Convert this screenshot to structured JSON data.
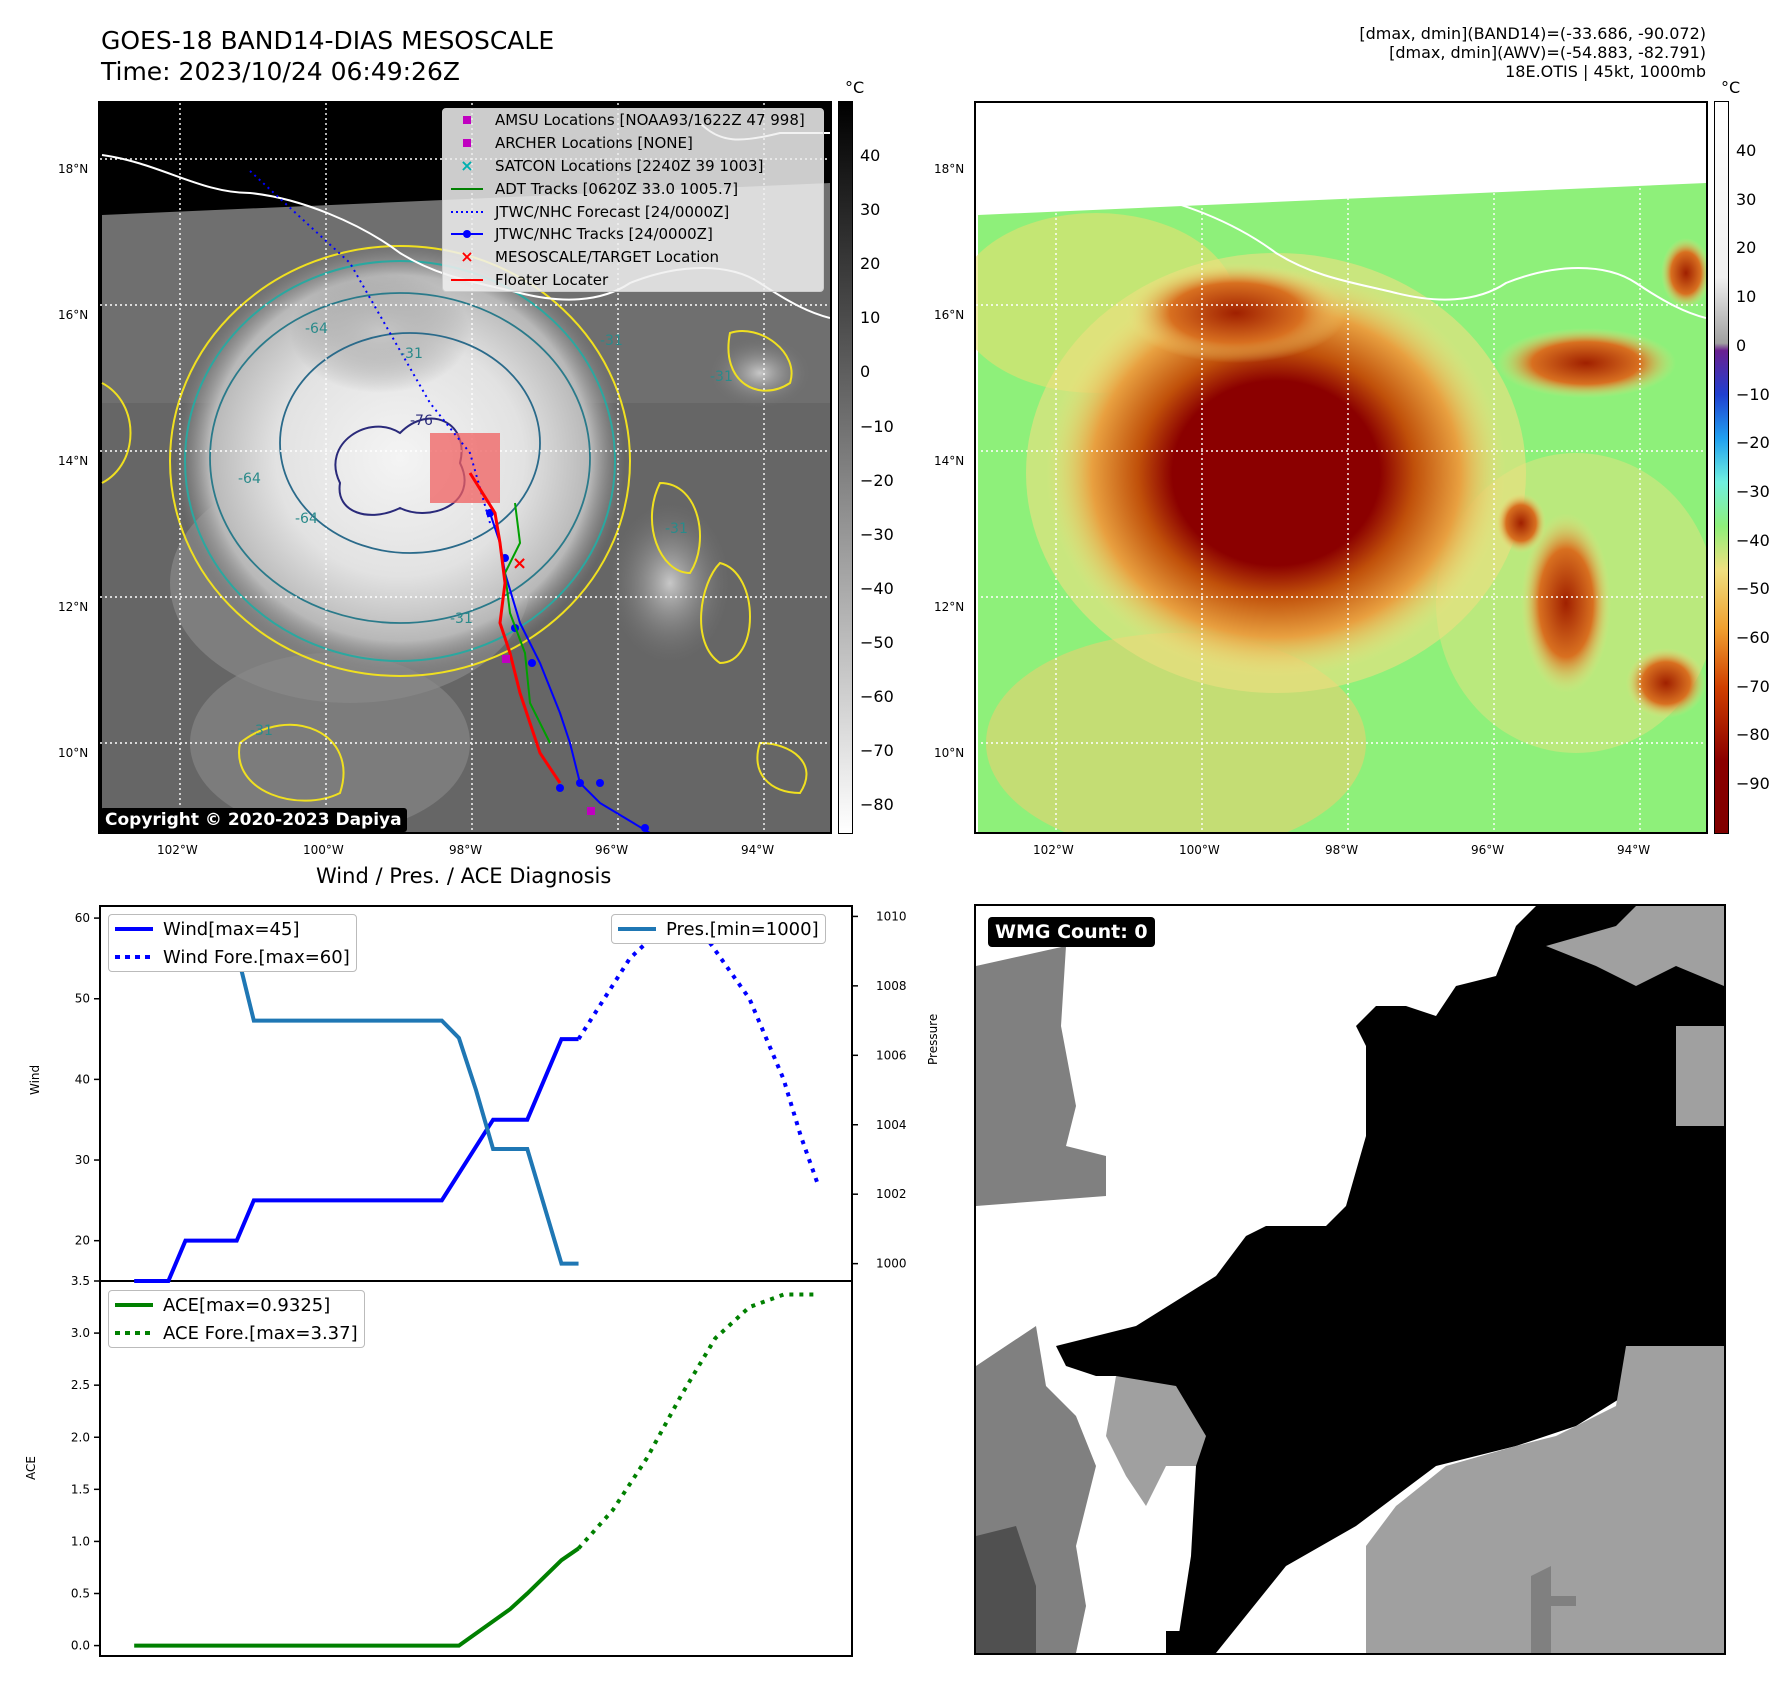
{
  "header": {
    "title_line1": "GOES-18 BAND14-DIAS MESOSCALE",
    "title_line2": "Time: 2023/10/24 06:49:26Z",
    "info_line1": "[dmax, dmin](BAND14)=(-33.686, -90.072)",
    "info_line2": "[dmax, dmin](AWV)=(-54.883, -82.791)",
    "info_line3": "18E.OTIS | 45kt, 1000mb"
  },
  "map": {
    "lat_ticks": [
      "18°N",
      "16°N",
      "14°N",
      "12°N",
      "10°N"
    ],
    "lon_ticks": [
      "102°W",
      "100°W",
      "98°W",
      "96°W",
      "94°W"
    ],
    "copyright": "Copyright © 2020-2023 Dapiya",
    "contour_labels": [
      "-64",
      "-64",
      "-76",
      "-31",
      "-31",
      "-31",
      "-31",
      "-64",
      "-31",
      "-31"
    ],
    "legend": [
      {
        "label": "AMSU Locations [NOAA93/1622Z 47 998]",
        "symbol": "square",
        "color": "#c000c0"
      },
      {
        "label": "ARCHER Locations [NONE]",
        "symbol": "square",
        "color": "#c000c0"
      },
      {
        "label": "SATCON Locations [2240Z 39 1003]",
        "symbol": "x",
        "color": "#00b0b0"
      },
      {
        "label": "ADT Tracks [0620Z 33.0 1005.7]",
        "symbol": "line",
        "color": "#008000"
      },
      {
        "label": "JTWC/NHC Forecast [24/0000Z]",
        "symbol": "dotted",
        "color": "#0000ff"
      },
      {
        "label": "JTWC/NHC Tracks [24/0000Z]",
        "symbol": "dotline",
        "color": "#0000ff"
      },
      {
        "label": "MESOSCALE/TARGET Location",
        "symbol": "x",
        "color": "#ff0000"
      },
      {
        "label": "Floater Locater",
        "symbol": "line",
        "color": "#ff0000"
      }
    ]
  },
  "colorbar1": {
    "unit": "°C",
    "ticks": [
      "40",
      "30",
      "20",
      "10",
      "0",
      "−10",
      "−20",
      "−30",
      "−40",
      "−50",
      "−60",
      "−70",
      "−80"
    ]
  },
  "colorbar2": {
    "unit": "°C",
    "ticks": [
      "40",
      "30",
      "20",
      "10",
      "0",
      "−10",
      "−20",
      "−30",
      "−40",
      "−50",
      "−60",
      "−70",
      "−80",
      "−90"
    ]
  },
  "diagnosis": {
    "title": "Wind / Pres. / ACE Diagnosis",
    "wind_ylabel": "Wind",
    "pres_ylabel": "Pressure",
    "ace_ylabel": "ACE",
    "legend_wind": "Wind[max=45]",
    "legend_wind_fore": "Wind Fore.[max=60]",
    "legend_pres": "Pres.[min=1000]",
    "legend_ace": "ACE[max=0.9325]",
    "legend_ace_fore": "ACE Fore.[max=3.37]"
  },
  "wmg": {
    "label": "WMG Count: 0"
  },
  "chart_data": [
    {
      "type": "line",
      "title": "Wind / Pres. / ACE Diagnosis",
      "ylabel": "Wind",
      "ylim": [
        15,
        61.5
      ],
      "yticks": [
        20,
        30,
        40,
        50,
        60
      ],
      "x": [
        0,
        1,
        2,
        3,
        4,
        5,
        6,
        7,
        8,
        9,
        10,
        11,
        12,
        13,
        14,
        15,
        16,
        17,
        18,
        19,
        20,
        21,
        22,
        23
      ],
      "series": [
        {
          "name": "Wind[max=45]",
          "style": "solid",
          "color": "#0000ff",
          "points": [
            [
              0,
              15
            ],
            [
              2,
              15
            ],
            [
              3,
              20
            ],
            [
              6,
              20
            ],
            [
              7,
              25
            ],
            [
              18,
              25
            ],
            [
              21,
              35
            ],
            [
              23,
              35
            ],
            [
              25,
              45
            ],
            [
              26,
              45
            ]
          ]
        },
        {
          "name": "Wind Fore.[max=60]",
          "style": "dotted",
          "color": "#0000ff",
          "points": [
            [
              26,
              45
            ],
            [
              29,
              55
            ],
            [
              30,
              57
            ],
            [
              32,
              60
            ],
            [
              33,
              59
            ],
            [
              35,
              53
            ],
            [
              36,
              50
            ],
            [
              38,
              40
            ],
            [
              39,
              33
            ],
            [
              40,
              27
            ]
          ]
        }
      ]
    },
    {
      "type": "line",
      "ylabel": "Pressure",
      "ylim": [
        999.5,
        1010.3
      ],
      "yticks": [
        1000,
        1002,
        1004,
        1006,
        1008,
        1010
      ],
      "series": [
        {
          "name": "Pres.[min=1000]",
          "style": "solid",
          "color": "#1f77b4",
          "points": [
            [
              0,
              1010
            ],
            [
              2,
              1010
            ],
            [
              3,
              1009
            ],
            [
              6,
              1009
            ],
            [
              7,
              1007
            ],
            [
              18,
              1007
            ],
            [
              19,
              1006.5
            ],
            [
              20,
              1005
            ],
            [
              21,
              1003.3
            ],
            [
              23,
              1003.3
            ],
            [
              25,
              1000
            ],
            [
              26,
              1000
            ]
          ]
        }
      ]
    },
    {
      "type": "line",
      "ylabel": "ACE",
      "ylim": [
        -0.1,
        3.5
      ],
      "yticks": [
        0.0,
        0.5,
        1.0,
        1.5,
        2.0,
        2.5,
        3.0,
        3.5
      ],
      "series": [
        {
          "name": "ACE[max=0.9325]",
          "style": "solid",
          "color": "#008000",
          "points": [
            [
              0,
              0
            ],
            [
              19,
              0
            ],
            [
              22,
              0.35
            ],
            [
              23,
              0.5
            ],
            [
              25,
              0.82
            ],
            [
              26,
              0.9325
            ]
          ]
        },
        {
          "name": "ACE Fore.[max=3.37]",
          "style": "dotted",
          "color": "#008000",
          "points": [
            [
              26,
              0.9325
            ],
            [
              28,
              1.3
            ],
            [
              30,
              1.8
            ],
            [
              32,
              2.4
            ],
            [
              34,
              2.95
            ],
            [
              36,
              3.25
            ],
            [
              38,
              3.37
            ],
            [
              40,
              3.37
            ]
          ]
        }
      ]
    }
  ]
}
